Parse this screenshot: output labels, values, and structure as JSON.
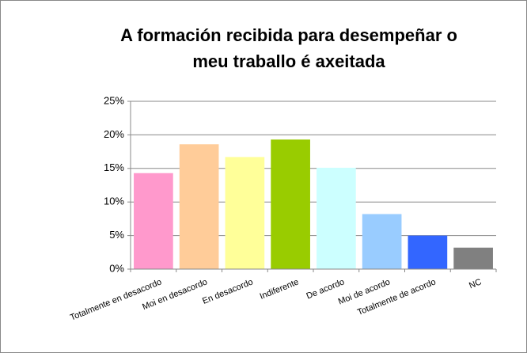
{
  "chart_data": {
    "type": "bar",
    "title": [
      "A formación recibida para desempeñar o",
      "meu traballo é axeitada"
    ],
    "categories": [
      "Totalmente en desacordo",
      "Moi en desacordo",
      "En desacordo",
      "Indiferente",
      "De acordo",
      "Moi de acordo",
      "Totalmente de acordo",
      "NC"
    ],
    "values": [
      14.3,
      18.6,
      16.7,
      19.3,
      15.1,
      8.2,
      5.0,
      3.2
    ],
    "colors": [
      "#ff99cc",
      "#ffcc99",
      "#ffff99",
      "#99cc00",
      "#ccffff",
      "#99ccff",
      "#3366ff",
      "#808080"
    ],
    "ylim": [
      0,
      25
    ],
    "yticks": [
      {
        "value": 0,
        "label": "0%"
      },
      {
        "value": 5,
        "label": "5%"
      },
      {
        "value": 10,
        "label": "10%"
      },
      {
        "value": 15,
        "label": "15%"
      },
      {
        "value": 20,
        "label": "20%"
      },
      {
        "value": 25,
        "label": "25%"
      }
    ],
    "grid": true
  }
}
